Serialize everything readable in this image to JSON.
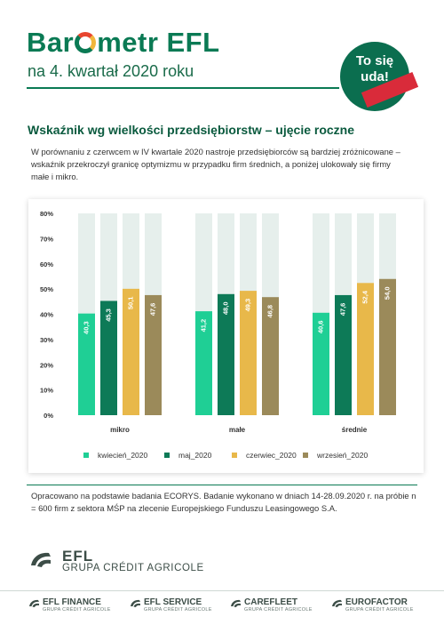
{
  "header": {
    "brand_part1": "Bar",
    "brand_part2": "metr EFL",
    "subtitle": "na 4. kwartał 2020 roku",
    "badge_text_line1": "To się",
    "badge_text_line2": "uda!"
  },
  "section": {
    "title": "Wskaźnik wg wielkości przedsiębiorstw – ujęcie roczne",
    "intro": "W porównaniu z czerwcem w IV kwartale 2020 nastroje przedsiębiorców są bardziej zróżnicowane – wskaźnik przekroczył granicę optymizmu w przypadku firm średnich, a poniżej ulokowały się firmy małe i mikro."
  },
  "chart_data": {
    "type": "bar",
    "categories": [
      "mikro",
      "małe",
      "średnie"
    ],
    "series": [
      {
        "name": "kwiecień_2020",
        "values": [
          40.3,
          41.2,
          40.6
        ],
        "labels": [
          "40,3",
          "41,2",
          "40,6"
        ],
        "color": "#1fcf95"
      },
      {
        "name": "maj_2020",
        "values": [
          45.3,
          48.0,
          47.6
        ],
        "labels": [
          "45,3",
          "48,0",
          "47,6"
        ],
        "color": "#0d7a57"
      },
      {
        "name": "czerwiec_2020",
        "values": [
          50.1,
          49.3,
          52.4
        ],
        "labels": [
          "50,1",
          "49,3",
          "52,4"
        ],
        "color": "#e8b84a"
      },
      {
        "name": "wrzesień_2020",
        "values": [
          47.6,
          46.8,
          54.0
        ],
        "labels": [
          "47,6",
          "46,8",
          "54,0"
        ],
        "color": "#9b8a5a"
      }
    ],
    "y_ticks": [
      "0%",
      "10%",
      "20%",
      "30%",
      "40%",
      "50%",
      "60%",
      "70%",
      "80%"
    ],
    "ylim": [
      0,
      80
    ],
    "background_bar_color": "#e6efec",
    "legend_position": "bottom",
    "grid": false
  },
  "source_note": "Opracowano na podstawie badania ECORYS. Badanie wykonano w dniach 14-28.09.2020 r. na próbie n = 600 firm z sektora MŚP na zlecenie Europejskiego Funduszu Leasingowego S.A.",
  "logo": {
    "name": "EFL",
    "group": "GRUPA CRÉDIT AGRICOLE",
    "color": "#3c4d47"
  },
  "footer": {
    "subsidiaries": [
      {
        "name": "EFL FINANCE",
        "group": "GRUPA CRÉDIT AGRICOLE"
      },
      {
        "name": "EFL SERVICE",
        "group": "GRUPA CRÉDIT AGRICOLE"
      },
      {
        "name": "CAREFLEET",
        "group": "GRUPA CRÉDIT AGRICOLE"
      },
      {
        "name": "EUROFACTOR",
        "group": "GRUPA CRÉDIT AGRICOLE"
      }
    ]
  },
  "colors": {
    "brand_green": "#0a7a54",
    "badge_green": "#0b6e4f",
    "badge_ribbon": "#d92b3a"
  }
}
